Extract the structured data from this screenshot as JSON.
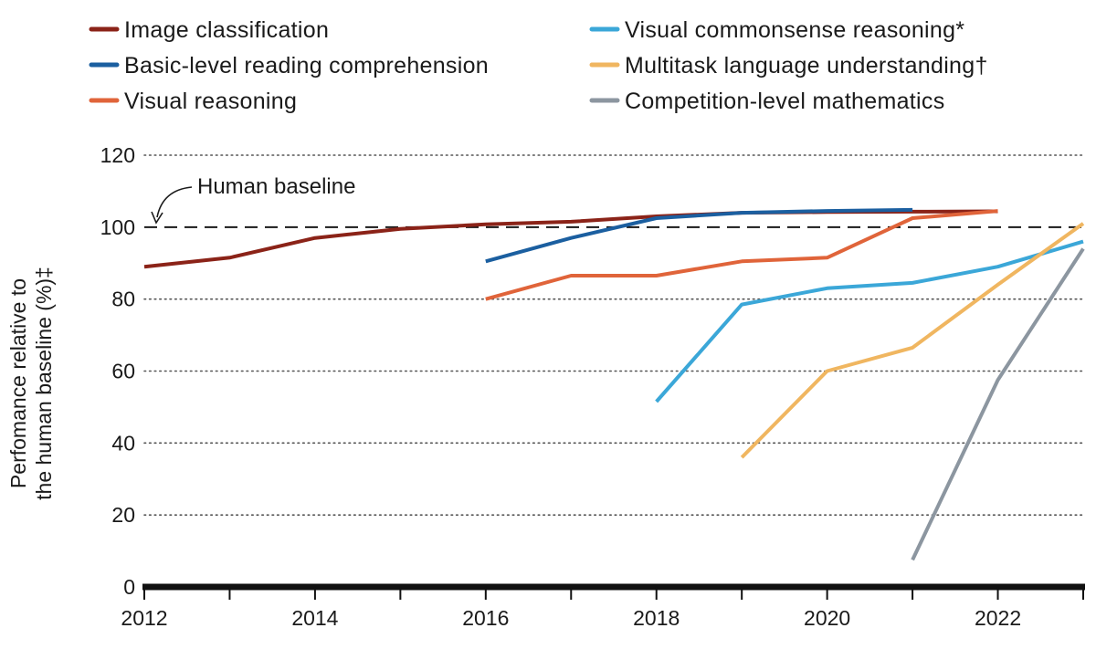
{
  "chart_data": {
    "type": "line",
    "title": "",
    "xlabel": "",
    "ylabel_lines": [
      "Perfomance relative to",
      "the human baseline (%)‡"
    ],
    "xlim": [
      2012,
      2023
    ],
    "ylim": [
      0,
      120
    ],
    "x_ticks": [
      2012,
      2014,
      2016,
      2018,
      2020,
      2022
    ],
    "y_ticks": [
      0,
      20,
      40,
      60,
      80,
      100,
      120
    ],
    "grid": "horizontal-dotted",
    "legend_placement": "top",
    "baseline": {
      "value": 100,
      "label": "Human baseline",
      "style": "dashed"
    },
    "series": [
      {
        "name": "Image classification",
        "color": "#8b2318",
        "x": [
          2012,
          2013,
          2014,
          2015,
          2016,
          2017,
          2018,
          2019,
          2020,
          2021,
          2022
        ],
        "y": [
          89,
          91.5,
          97,
          99.5,
          100.8,
          101.5,
          103,
          104,
          104.2,
          104.3,
          104.4
        ]
      },
      {
        "name": "Visual commonsense reasoning*",
        "color": "#3ba7d8",
        "x": [
          2018,
          2019,
          2020,
          2021,
          2022,
          2023
        ],
        "y": [
          51.5,
          78.5,
          83,
          84.5,
          89,
          96
        ]
      },
      {
        "name": "Basic-level reading comprehension",
        "color": "#1b5fa0",
        "x": [
          2016,
          2017,
          2018,
          2019,
          2020,
          2021
        ],
        "y": [
          90.5,
          97,
          102.5,
          104,
          104.5,
          104.8
        ]
      },
      {
        "name": "Multitask language understanding†",
        "color": "#f0b660",
        "x": [
          2019,
          2020,
          2021,
          2022,
          2023
        ],
        "y": [
          36,
          60,
          66.5,
          84,
          101
        ]
      },
      {
        "name": "Visual reasoning",
        "color": "#e0643a",
        "x": [
          2016,
          2017,
          2018,
          2019,
          2020,
          2021,
          2022
        ],
        "y": [
          80,
          86.5,
          86.5,
          90.5,
          91.5,
          102.5,
          104.5
        ]
      },
      {
        "name": "Competition-level mathematics",
        "color": "#8c96a0",
        "x": [
          2021,
          2022,
          2023
        ],
        "y": [
          7.5,
          57.5,
          94
        ]
      }
    ]
  }
}
